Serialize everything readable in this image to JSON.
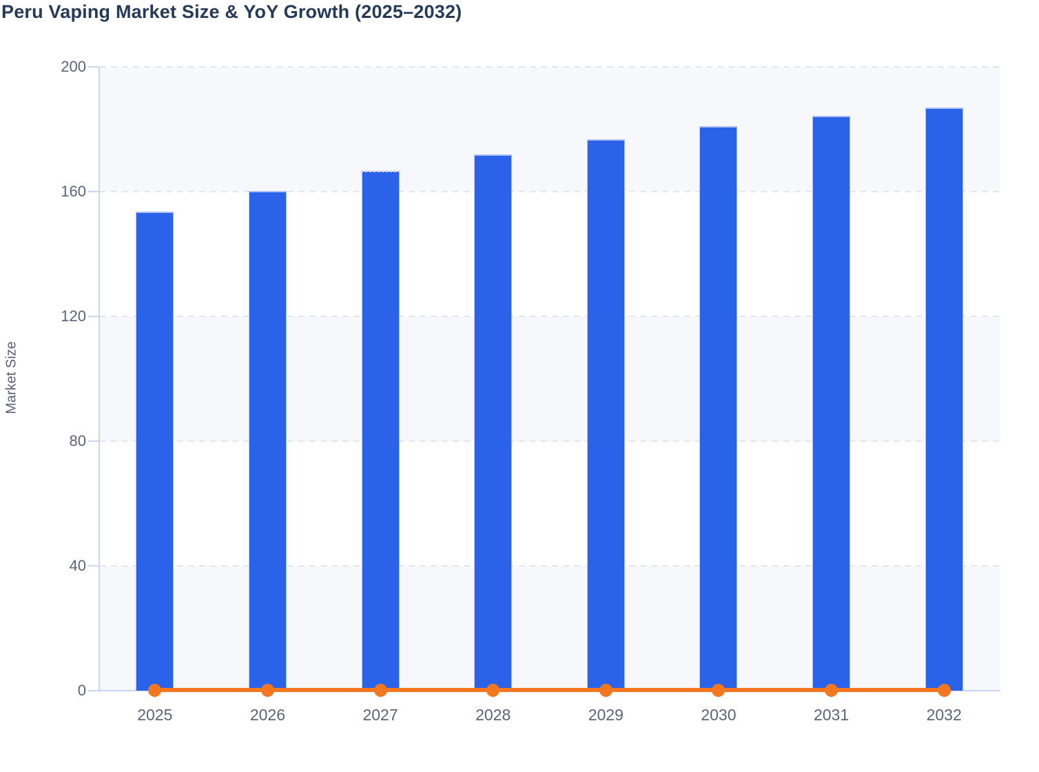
{
  "chart_data": {
    "type": "bar",
    "title": "Peru Vaping Market Size & YoY Growth (2025–2032)",
    "subtitle": "",
    "xlabel": "",
    "ylabel": "Market Size",
    "categories": [
      "2025",
      "2026",
      "2027",
      "2028",
      "2029",
      "2030",
      "2031",
      "2032"
    ],
    "series": [
      {
        "name": "Market Size",
        "type": "bar",
        "color": "#2a63e9",
        "values": [
          153.5,
          160.3,
          166.5,
          171.9,
          176.8,
          180.9,
          184.4,
          187.0
        ]
      },
      {
        "name": "YoY Growth",
        "type": "line",
        "color": "#f3771e",
        "values": [
          0,
          0,
          0,
          0,
          0,
          0,
          0,
          0
        ]
      }
    ],
    "ylim": [
      0,
      200
    ],
    "yticks": [
      0,
      40,
      80,
      120,
      160,
      200
    ],
    "legend": "none",
    "grid": "dashed-horizontal",
    "plot_background": "alternating-bands",
    "styles": {
      "dotted_top_category": "2027"
    },
    "colors": {
      "bar_fill": "#2a63e9",
      "bar_edge": "#aec1f1",
      "line": "#f3771e",
      "title_text": "#243a57",
      "tick_label_text": "#5a6578",
      "axis_label_text": "#566175",
      "axis_line": "#ccd5ef",
      "gridline": "#e3e6eb",
      "band_fill": "#f7f8fb",
      "background": "#ffffff"
    }
  }
}
